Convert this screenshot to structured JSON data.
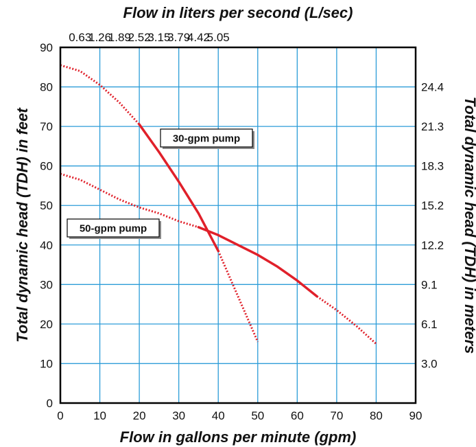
{
  "chart_data": {
    "type": "line",
    "title": "",
    "xlabel": "Flow in gallons per minute (gpm)",
    "x2label": "Flow in liters per second (L/sec)",
    "ylabel": "Total dynamic head (TDH) in feet",
    "y2label": "Total dynamic head (TDH) in meters",
    "xlim": [
      0,
      90
    ],
    "ylim": [
      0,
      90
    ],
    "x_ticks": [
      "0",
      "10",
      "20",
      "30",
      "40",
      "50",
      "60",
      "70",
      "80",
      "90"
    ],
    "y_ticks": [
      "0",
      "10",
      "20",
      "30",
      "40",
      "50",
      "60",
      "70",
      "80",
      "90"
    ],
    "x2_ticks": [
      {
        "at": 5,
        "label": "0.63"
      },
      {
        "at": 10,
        "label": "1.26"
      },
      {
        "at": 15,
        "label": "1.89"
      },
      {
        "at": 20,
        "label": "2.52"
      },
      {
        "at": 25,
        "label": "3.15"
      },
      {
        "at": 30,
        "label": "3.79"
      },
      {
        "at": 35,
        "label": "4.42"
      },
      {
        "at": 40,
        "label": "5.05"
      }
    ],
    "y2_ticks": [
      {
        "at": 10,
        "label": "3.0"
      },
      {
        "at": 20,
        "label": "6.1"
      },
      {
        "at": 30,
        "label": "9.1"
      },
      {
        "at": 40,
        "label": "12.2"
      },
      {
        "at": 50,
        "label": "15.2"
      },
      {
        "at": 60,
        "label": "18.3"
      },
      {
        "at": 70,
        "label": "21.3"
      },
      {
        "at": 80,
        "label": "24.4"
      }
    ],
    "grid": true,
    "colors": {
      "series": "#e0202a",
      "grid": "#2b9cd8",
      "frame": "#000000"
    },
    "series": [
      {
        "name": "30-gpm pump",
        "dotted_start": [
          [
            0,
            85.5
          ],
          [
            5,
            84
          ],
          [
            10,
            80.5
          ],
          [
            15,
            76
          ],
          [
            20,
            70.5
          ]
        ],
        "solid": [
          [
            20,
            70.5
          ],
          [
            25,
            63.5
          ],
          [
            30,
            56
          ],
          [
            35,
            48
          ],
          [
            40,
            38.5
          ]
        ],
        "dotted_end": [
          [
            40,
            38.5
          ],
          [
            45,
            27
          ],
          [
            50,
            15.5
          ]
        ]
      },
      {
        "name": "50-gpm pump",
        "dotted_start": [
          [
            0,
            58
          ],
          [
            5,
            56.5
          ],
          [
            10,
            54
          ],
          [
            15,
            51.5
          ],
          [
            20,
            49.5
          ],
          [
            25,
            48
          ],
          [
            30,
            46
          ],
          [
            35,
            44.5
          ]
        ],
        "solid": [
          [
            35,
            44.5
          ],
          [
            40,
            42.5
          ],
          [
            45,
            40
          ],
          [
            50,
            37.5
          ],
          [
            55,
            34.5
          ],
          [
            60,
            31
          ],
          [
            65,
            27
          ]
        ],
        "dotted_end": [
          [
            65,
            27
          ],
          [
            70,
            23.5
          ],
          [
            75,
            19.5
          ],
          [
            80,
            15
          ]
        ]
      }
    ]
  }
}
